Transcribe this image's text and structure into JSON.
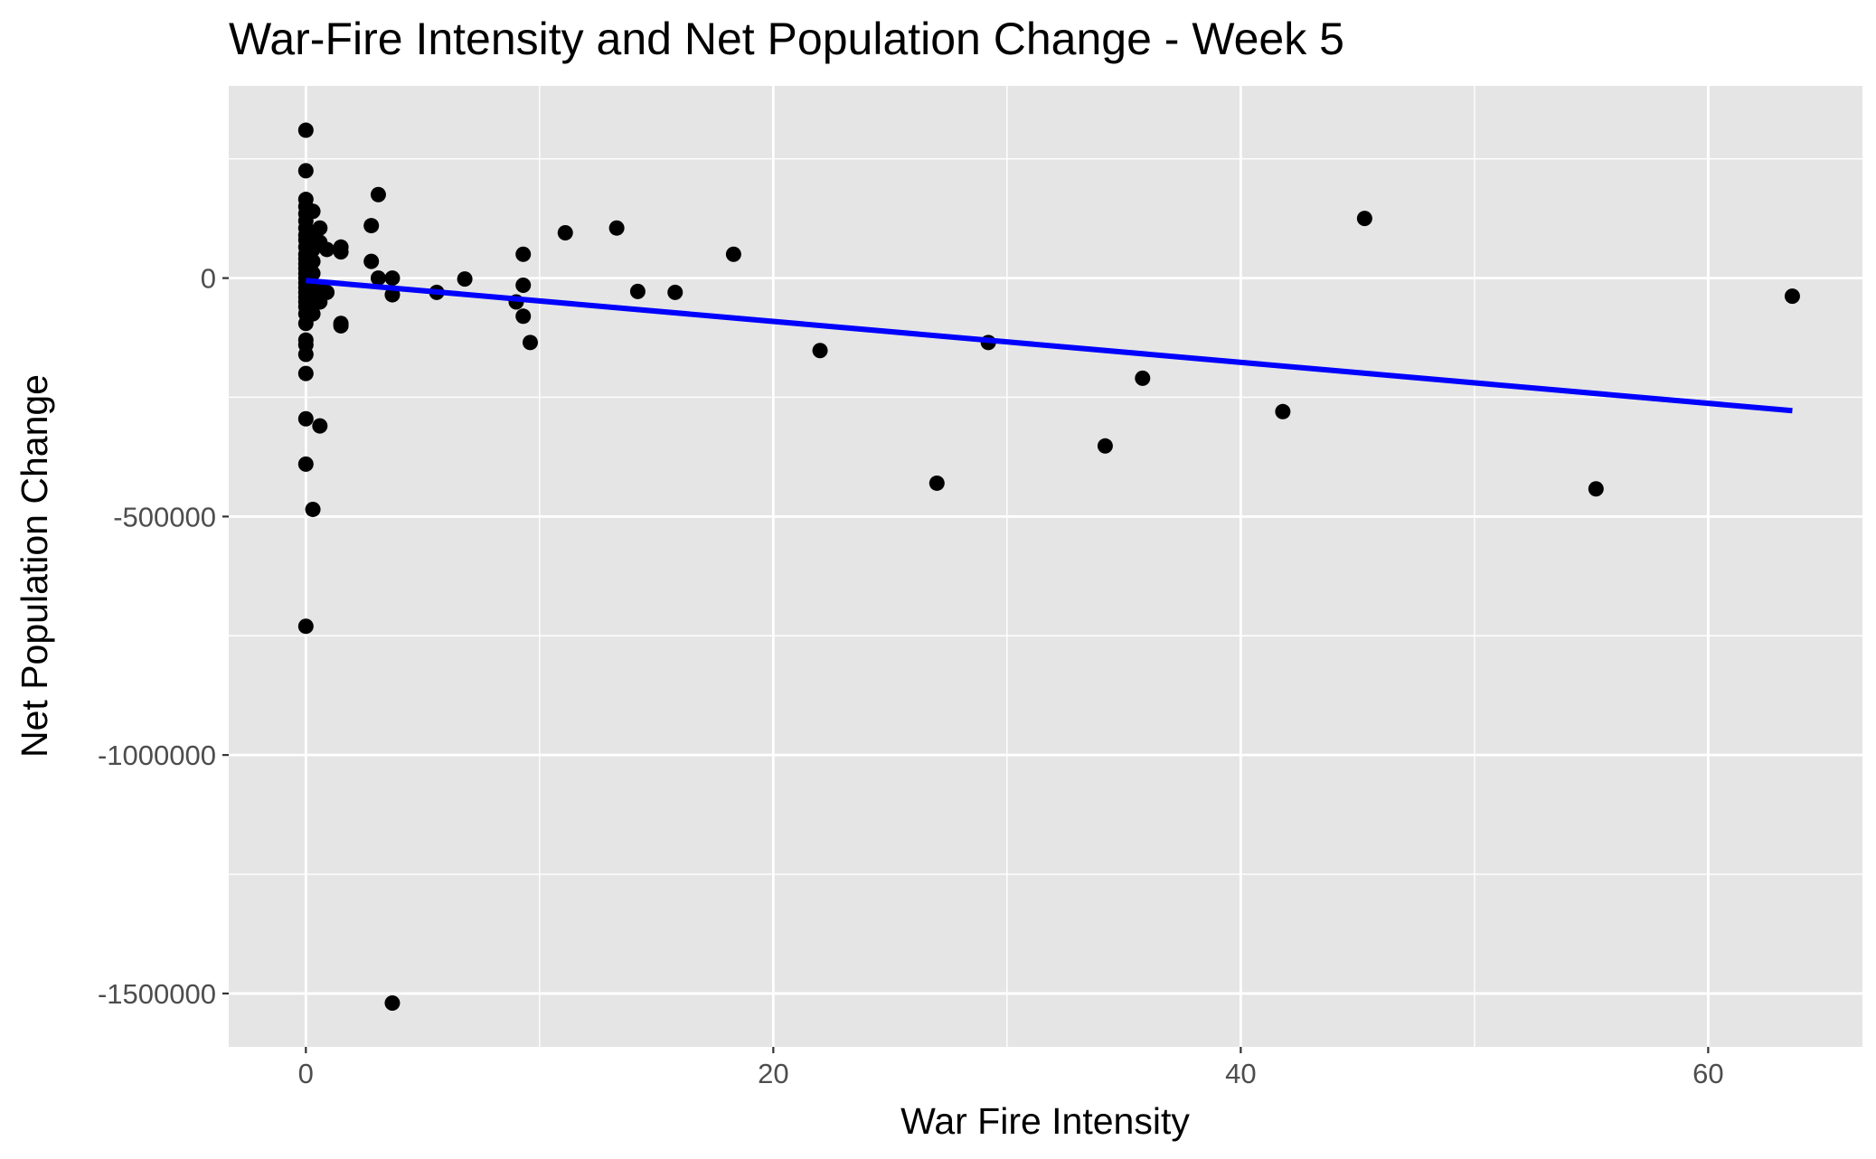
{
  "chart_data": {
    "type": "scatter",
    "title": "War-Fire Intensity and Net Population Change - Week 5",
    "xlabel": "War Fire Intensity",
    "ylabel": "Net Population Change",
    "xlim": [
      -3.3,
      66.6
    ],
    "ylim": [
      -1612000,
      403000
    ],
    "x_ticks": [
      0,
      20,
      40,
      60
    ],
    "x_tick_labels": [
      "0",
      "20",
      "40",
      "60"
    ],
    "y_ticks": [
      0,
      -500000,
      -1000000,
      -1500000
    ],
    "y_tick_labels": [
      "0",
      "-500000",
      "-1000000",
      "-1500000"
    ],
    "grid": true,
    "legend": "none",
    "colors": {
      "panel": "#e5e5e5",
      "grid": "#ffffff",
      "points": "#000000",
      "trend": "#0000ff"
    },
    "points": [
      {
        "x": 0.0,
        "y": 310000
      },
      {
        "x": 0.0,
        "y": 225000
      },
      {
        "x": 0.0,
        "y": 165000
      },
      {
        "x": 0.0,
        "y": 150000
      },
      {
        "x": 0.0,
        "y": 135000
      },
      {
        "x": 0.0,
        "y": 120000
      },
      {
        "x": 0.0,
        "y": 105000
      },
      {
        "x": 0.0,
        "y": 90000
      },
      {
        "x": 0.0,
        "y": 80000
      },
      {
        "x": 0.0,
        "y": 65000
      },
      {
        "x": 0.0,
        "y": 50000
      },
      {
        "x": 0.0,
        "y": 40000
      },
      {
        "x": 0.0,
        "y": 30000
      },
      {
        "x": 0.0,
        "y": 20000
      },
      {
        "x": 0.0,
        "y": 10000
      },
      {
        "x": 0.0,
        "y": 0
      },
      {
        "x": 0.0,
        "y": -10000
      },
      {
        "x": 0.0,
        "y": -20000
      },
      {
        "x": 0.0,
        "y": -30000
      },
      {
        "x": 0.0,
        "y": -40000
      },
      {
        "x": 0.0,
        "y": -50000
      },
      {
        "x": 0.0,
        "y": -60000
      },
      {
        "x": 0.0,
        "y": -75000
      },
      {
        "x": 0.0,
        "y": -95000
      },
      {
        "x": 0.0,
        "y": -130000
      },
      {
        "x": 0.0,
        "y": -140000
      },
      {
        "x": 0.0,
        "y": -160000
      },
      {
        "x": 0.0,
        "y": -200000
      },
      {
        "x": 0.0,
        "y": -295000
      },
      {
        "x": 0.0,
        "y": -390000
      },
      {
        "x": 0.0,
        "y": -730000
      },
      {
        "x": 0.3,
        "y": 140000
      },
      {
        "x": 0.3,
        "y": 90000
      },
      {
        "x": 0.3,
        "y": 60000
      },
      {
        "x": 0.3,
        "y": 35000
      },
      {
        "x": 0.3,
        "y": 10000
      },
      {
        "x": 0.3,
        "y": -20000
      },
      {
        "x": 0.3,
        "y": -45000
      },
      {
        "x": 0.3,
        "y": -75000
      },
      {
        "x": 0.3,
        "y": -485000
      },
      {
        "x": 0.6,
        "y": 105000
      },
      {
        "x": 0.6,
        "y": 75000
      },
      {
        "x": 0.6,
        "y": -25000
      },
      {
        "x": 0.6,
        "y": -50000
      },
      {
        "x": 0.6,
        "y": -310000
      },
      {
        "x": 0.9,
        "y": 60000
      },
      {
        "x": 0.9,
        "y": -30000
      },
      {
        "x": 1.5,
        "y": 65000
      },
      {
        "x": 1.5,
        "y": 55000
      },
      {
        "x": 1.5,
        "y": -95000
      },
      {
        "x": 1.5,
        "y": -100000
      },
      {
        "x": 2.8,
        "y": 110000
      },
      {
        "x": 2.8,
        "y": 35000
      },
      {
        "x": 3.1,
        "y": 175000
      },
      {
        "x": 3.1,
        "y": 0
      },
      {
        "x": 3.7,
        "y": 0
      },
      {
        "x": 3.7,
        "y": -35000
      },
      {
        "x": 3.7,
        "y": -1520000
      },
      {
        "x": 5.6,
        "y": -30000
      },
      {
        "x": 6.8,
        "y": -2000
      },
      {
        "x": 9.0,
        "y": -50000
      },
      {
        "x": 9.3,
        "y": 50000
      },
      {
        "x": 9.3,
        "y": -15000
      },
      {
        "x": 9.3,
        "y": -80000
      },
      {
        "x": 9.6,
        "y": -135000
      },
      {
        "x": 11.1,
        "y": 95000
      },
      {
        "x": 13.3,
        "y": 105000
      },
      {
        "x": 14.2,
        "y": -28000
      },
      {
        "x": 15.8,
        "y": -30000
      },
      {
        "x": 18.3,
        "y": 50000
      },
      {
        "x": 22.0,
        "y": -152000
      },
      {
        "x": 27.0,
        "y": -430000
      },
      {
        "x": 29.2,
        "y": -135000
      },
      {
        "x": 34.2,
        "y": -352000
      },
      {
        "x": 35.8,
        "y": -210000
      },
      {
        "x": 41.8,
        "y": -280000
      },
      {
        "x": 45.3,
        "y": 125000
      },
      {
        "x": 55.2,
        "y": -442000
      },
      {
        "x": 63.6,
        "y": -38000
      }
    ],
    "trend_line": {
      "x": [
        0,
        63.6
      ],
      "y": [
        -5000,
        -278000
      ]
    }
  }
}
